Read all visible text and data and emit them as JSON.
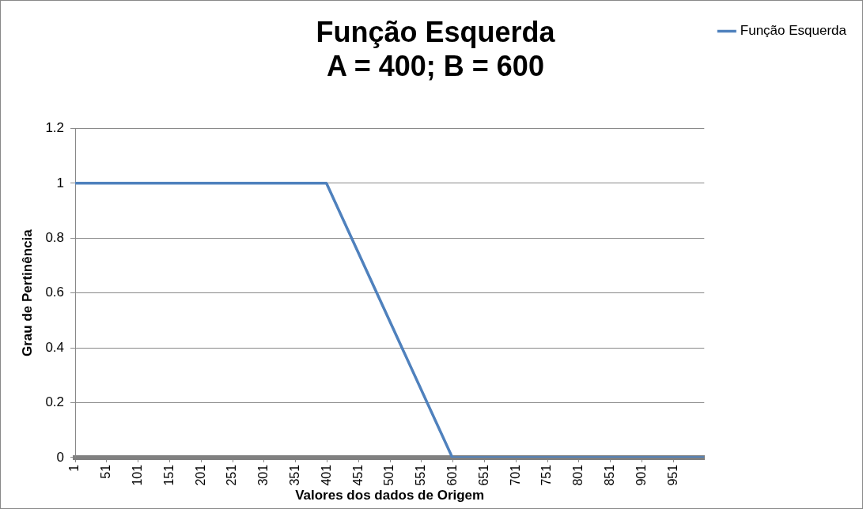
{
  "chart_data": {
    "type": "line",
    "title": "Função Esquerda",
    "subtitle": "A = 400; B = 600",
    "xlabel": "Valores dos dados de Origem",
    "ylabel": "Grau de Pertinência",
    "series": [
      {
        "name": "Função Esquerda",
        "color": "#4f81bd",
        "x": [
          1,
          400,
          600,
          1000
        ],
        "values": [
          1,
          1,
          0,
          0
        ]
      }
    ],
    "xlim": [
      1,
      1000
    ],
    "xticks": [
      1,
      51,
      101,
      151,
      201,
      251,
      301,
      351,
      401,
      451,
      501,
      551,
      601,
      651,
      701,
      751,
      801,
      851,
      901,
      951
    ],
    "ylim": [
      0,
      1.2
    ],
    "yticks": [
      0,
      0.2,
      0.4,
      0.6,
      0.8,
      1,
      1.2
    ],
    "grid": "y",
    "legend": "right",
    "marker": "none",
    "line_style": "solid"
  }
}
